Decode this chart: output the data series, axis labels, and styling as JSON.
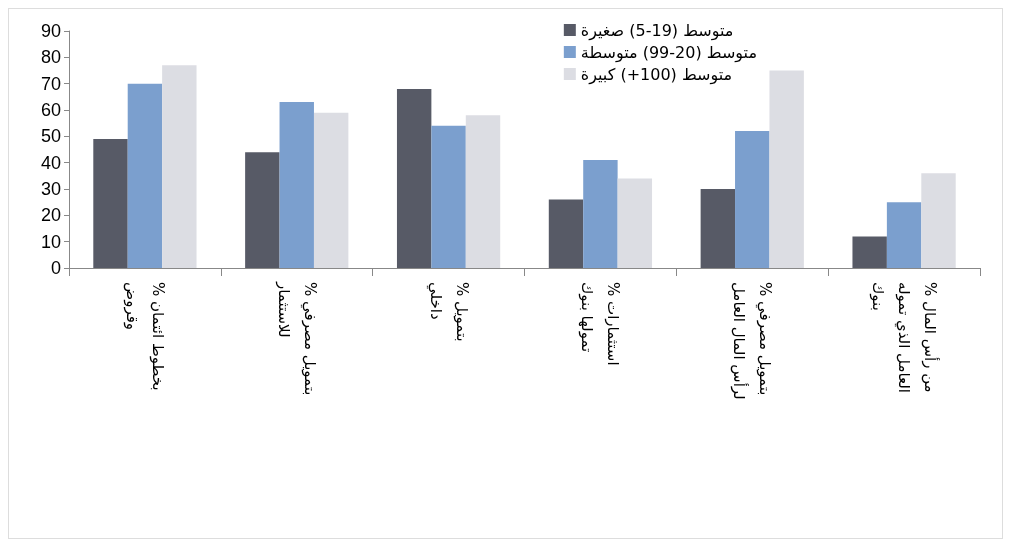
{
  "chart_data": {
    "type": "bar",
    "categories": [
      "% بخطوط ائتمان\nوقروض",
      "% بتمويل مصرفي\nللاستثمار",
      "% بتمويل\nداخلي",
      "% استثمارات\nتمولها بنوك",
      "% بتمويل مصرفي\nلرأس المال العامل",
      "% من رأس المال\nالعامل الذي تموله\nبنوك"
    ],
    "series": [
      {
        "name": "متوسط (19-5) صغيرة",
        "color": "#575a66",
        "values": [
          49,
          44,
          68,
          26,
          30,
          12
        ]
      },
      {
        "name": "متوسط (20-99) متوسطة",
        "color": "#7b9fce",
        "values": [
          70,
          63,
          54,
          41,
          52,
          25
        ]
      },
      {
        "name": "متوسط (100+) كبيرة",
        "color": "#dcdde3",
        "values": [
          77,
          59,
          58,
          34,
          75,
          36
        ]
      }
    ],
    "ylim": [
      0,
      90
    ],
    "yticks": [
      0,
      10,
      20,
      30,
      40,
      50,
      60,
      70,
      80,
      90
    ],
    "grid": false,
    "legend": "top right"
  }
}
